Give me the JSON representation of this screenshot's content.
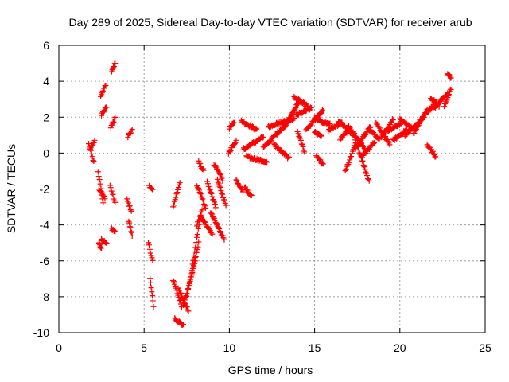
{
  "chart_data": {
    "type": "scatter",
    "title": "Day 289 of 2025, Sidereal Day-to-day VTEC variation (SDTVAR) for receiver arub",
    "xlabel": "GPS time / hours",
    "ylabel": "SDTVAR / TECUs",
    "xlim": [
      0,
      25
    ],
    "ylim": [
      -10,
      6
    ],
    "xticks": [
      0,
      5,
      10,
      15,
      20,
      25
    ],
    "yticks": [
      -10,
      -8,
      -6,
      -4,
      -2,
      0,
      2,
      4,
      6
    ],
    "xtick_labels": [
      "0",
      "5",
      "10",
      "15",
      "20",
      "25"
    ],
    "ytick_labels": [
      "-10",
      "-8",
      "-6",
      "-4",
      "-2",
      "0",
      "2",
      "4",
      "6"
    ],
    "grid": true,
    "marker": "plus",
    "series": [
      {
        "name": "arub",
        "color": "#ff0000",
        "segments": [
          {
            "x": [
              1.75,
              2.05
            ],
            "y": [
              0.5,
              -0.5
            ]
          },
          {
            "x": [
              1.85,
              2.1
            ],
            "y": [
              0.2,
              0.7
            ]
          },
          {
            "x": [
              2.3,
              2.6
            ],
            "y": [
              -1.0,
              -2.8
            ]
          },
          {
            "x": [
              2.35,
              2.7
            ],
            "y": [
              -2.0,
              -2.5
            ]
          },
          {
            "x": [
              2.45,
              2.75
            ],
            "y": [
              3.2,
              3.8
            ]
          },
          {
            "x": [
              2.5,
              2.8
            ],
            "y": [
              2.1,
              2.6
            ]
          },
          {
            "x": [
              2.5,
              2.8
            ],
            "y": [
              -4.8,
              -5.0
            ]
          },
          {
            "x": [
              2.35,
              2.5
            ],
            "y": [
              -5.0,
              -5.3
            ]
          },
          {
            "x": [
              3.1,
              3.3
            ],
            "y": [
              4.6,
              5.0
            ]
          },
          {
            "x": [
              3.05,
              3.3
            ],
            "y": [
              1.4,
              2.0
            ]
          },
          {
            "x": [
              3.0,
              3.3
            ],
            "y": [
              -1.8,
              -2.8
            ]
          },
          {
            "x": [
              3.1,
              3.3
            ],
            "y": [
              -4.2,
              -4.4
            ]
          },
          {
            "x": [
              4.05,
              4.3
            ],
            "y": [
              0.9,
              1.3
            ]
          },
          {
            "x": [
              4.0,
              4.25
            ],
            "y": [
              -2.6,
              -3.2
            ]
          },
          {
            "x": [
              4.1,
              4.3
            ],
            "y": [
              -3.8,
              -4.6
            ]
          },
          {
            "x": [
              5.3,
              5.5
            ],
            "y": [
              -1.8,
              -2.1
            ]
          },
          {
            "x": [
              5.25,
              5.5
            ],
            "y": [
              -5.0,
              -6.0
            ]
          },
          {
            "x": [
              5.35,
              5.55
            ],
            "y": [
              -7.0,
              -8.5
            ]
          },
          {
            "x": [
              6.7,
              7.1
            ],
            "y": [
              -3.0,
              -1.6
            ]
          },
          {
            "x": [
              6.7,
              7.2
            ],
            "y": [
              -7.1,
              -8.5
            ]
          },
          {
            "x": [
              6.8,
              7.3
            ],
            "y": [
              -9.2,
              -9.6
            ]
          },
          {
            "x": [
              7.0,
              7.6
            ],
            "y": [
              -7.5,
              -8.8
            ]
          },
          {
            "x": [
              7.3,
              8.0
            ],
            "y": [
              -8.5,
              -6.0
            ]
          },
          {
            "x": [
              7.5,
              8.2
            ],
            "y": [
              -8.0,
              -5.0
            ]
          },
          {
            "x": [
              7.8,
              8.3
            ],
            "y": [
              -6.5,
              -3.5
            ]
          },
          {
            "x": [
              8.1,
              8.4
            ],
            "y": [
              -4.0,
              -3.2
            ]
          },
          {
            "x": [
              8.2,
              8.5
            ],
            "y": [
              -0.5,
              -1.0
            ]
          },
          {
            "x": [
              8.1,
              8.6
            ],
            "y": [
              -1.8,
              -3.0
            ]
          },
          {
            "x": [
              8.3,
              9.0
            ],
            "y": [
              -3.5,
              -4.5
            ]
          },
          {
            "x": [
              8.7,
              9.2
            ],
            "y": [
              -1.6,
              -3.0
            ]
          },
          {
            "x": [
              8.9,
              9.7
            ],
            "y": [
              -3.3,
              -4.8
            ]
          },
          {
            "x": [
              9.1,
              9.6
            ],
            "y": [
              -0.6,
              -1.5
            ]
          },
          {
            "x": [
              9.3,
              9.8
            ],
            "y": [
              -1.5,
              -2.9
            ]
          },
          {
            "x": [
              10.0,
              10.3
            ],
            "y": [
              1.4,
              1.7
            ]
          },
          {
            "x": [
              9.95,
              10.4
            ],
            "y": [
              0.0,
              0.7
            ]
          },
          {
            "x": [
              10.4,
              10.8
            ],
            "y": [
              -1.5,
              -2.1
            ]
          },
          {
            "x": [
              10.9,
              11.3
            ],
            "y": [
              -1.9,
              -2.4
            ]
          },
          {
            "x": [
              10.7,
              11.6
            ],
            "y": [
              1.8,
              1.3
            ]
          },
          {
            "x": [
              10.8,
              12.0
            ],
            "y": [
              0.2,
              0.9
            ]
          },
          {
            "x": [
              11.0,
              12.2
            ],
            "y": [
              -0.2,
              -0.5
            ]
          },
          {
            "x": [
              12.0,
              13.2
            ],
            "y": [
              0.3,
              1.5
            ]
          },
          {
            "x": [
              12.3,
              13.8
            ],
            "y": [
              1.5,
              1.9
            ]
          },
          {
            "x": [
              12.6,
              13.5
            ],
            "y": [
              0.5,
              -0.3
            ]
          },
          {
            "x": [
              13.2,
              14.1
            ],
            "y": [
              1.4,
              2.9
            ]
          },
          {
            "x": [
              13.8,
              14.6
            ],
            "y": [
              3.1,
              2.6
            ]
          },
          {
            "x": [
              13.9,
              14.8
            ],
            "y": [
              2.1,
              2.5
            ]
          },
          {
            "x": [
              14.0,
              14.4
            ],
            "y": [
              1.2,
              0.1
            ]
          },
          {
            "x": [
              14.5,
              15.5
            ],
            "y": [
              1.3,
              2.4
            ]
          },
          {
            "x": [
              15.0,
              15.9
            ],
            "y": [
              1.9,
              1.6
            ]
          },
          {
            "x": [
              15.0,
              15.4
            ],
            "y": [
              1.2,
              0.9
            ]
          },
          {
            "x": [
              15.1,
              15.5
            ],
            "y": [
              -0.2,
              -0.6
            ]
          },
          {
            "x": [
              15.8,
              16.6
            ],
            "y": [
              1.3,
              1.7
            ]
          },
          {
            "x": [
              16.4,
              17.3
            ],
            "y": [
              1.8,
              1.0
            ]
          },
          {
            "x": [
              16.5,
              17.0
            ],
            "y": [
              0.8,
              1.3
            ]
          },
          {
            "x": [
              16.8,
              17.4
            ],
            "y": [
              -1.0,
              0.5
            ]
          },
          {
            "x": [
              17.0,
              18.0
            ],
            "y": [
              1.5,
              0.2
            ]
          },
          {
            "x": [
              17.3,
              18.2
            ],
            "y": [
              1.0,
              -1.6
            ]
          },
          {
            "x": [
              17.4,
              18.3
            ],
            "y": [
              0.3,
              1.5
            ]
          },
          {
            "x": [
              17.8,
              18.5
            ],
            "y": [
              -0.2,
              0.6
            ]
          },
          {
            "x": [
              18.2,
              18.8
            ],
            "y": [
              1.3,
              0.8
            ]
          },
          {
            "x": [
              18.6,
              19.4
            ],
            "y": [
              1.7,
              0.5
            ]
          },
          {
            "x": [
              18.9,
              19.6
            ],
            "y": [
              0.8,
              1.9
            ]
          },
          {
            "x": [
              19.3,
              20.1
            ],
            "y": [
              1.2,
              1.7
            ]
          },
          {
            "x": [
              19.6,
              20.4
            ],
            "y": [
              0.7,
              1.3
            ]
          },
          {
            "x": [
              20.0,
              20.7
            ],
            "y": [
              1.9,
              1.4
            ]
          },
          {
            "x": [
              20.3,
              21.0
            ],
            "y": [
              1.0,
              1.6
            ]
          },
          {
            "x": [
              20.8,
              21.6
            ],
            "y": [
              1.1,
              2.4
            ]
          },
          {
            "x": [
              21.0,
              22.1
            ],
            "y": [
              1.6,
              2.8
            ]
          },
          {
            "x": [
              21.6,
              22.1
            ],
            "y": [
              0.5,
              -0.2
            ]
          },
          {
            "x": [
              21.8,
              22.3
            ],
            "y": [
              3.1,
              2.6
            ]
          },
          {
            "x": [
              22.0,
              22.8
            ],
            "y": [
              2.5,
              3.3
            ]
          },
          {
            "x": [
              22.6,
              23.0
            ],
            "y": [
              2.6,
              3.6
            ]
          },
          {
            "x": [
              22.8,
              23.0
            ],
            "y": [
              4.4,
              4.2
            ]
          }
        ]
      }
    ]
  }
}
